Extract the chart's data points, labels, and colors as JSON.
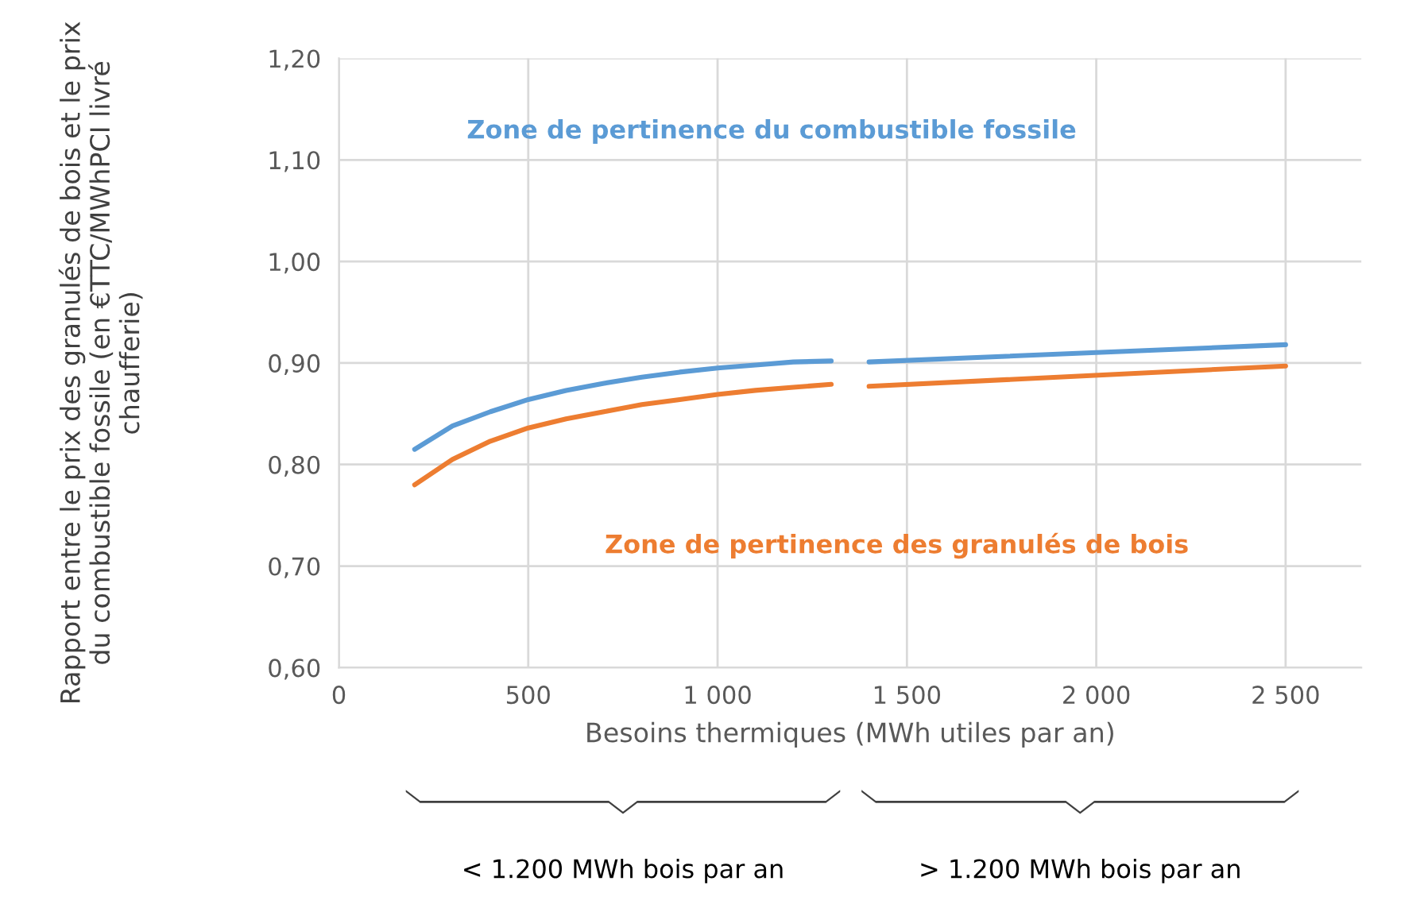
{
  "chart_data": {
    "type": "line",
    "xlabel": "Besoins thermiques (MWh utiles par an)",
    "ylabel": "Rapport entre le prix des granulés de bois et le prix du combustible fossile (en €TTC/MWhPCI livré chaufferie)",
    "x": [
      200,
      300,
      400,
      500,
      600,
      700,
      800,
      900,
      1000,
      1100,
      1200,
      1300,
      1350,
      1400,
      2500
    ],
    "series": [
      {
        "color": "#5b9bd5",
        "values": [
          0.815,
          0.838,
          0.852,
          0.864,
          0.873,
          0.88,
          0.886,
          0.891,
          0.895,
          0.898,
          0.901,
          0.902,
          null,
          0.901,
          0.918
        ]
      },
      {
        "color": "#ed7d31",
        "values": [
          0.78,
          0.805,
          0.823,
          0.836,
          0.845,
          0.852,
          0.859,
          0.864,
          0.869,
          0.873,
          0.876,
          0.879,
          null,
          0.877,
          0.897
        ]
      }
    ],
    "annotations": [
      "Zone de pertinence du combustible fossile",
      "Zone de pertinence des granulés de bois",
      "< 1.200 MWh bois par an",
      "> 1.200 MWh bois par an"
    ],
    "xlim": [
      0,
      2700
    ],
    "xticks": [
      0,
      500,
      {
        "value": 1000,
        "label": "1 000"
      },
      {
        "value": 1500,
        "label": "1 500"
      },
      {
        "value": 2000,
        "label": "2 000"
      },
      {
        "value": 2500,
        "label": "2 500"
      }
    ],
    "ylim": [
      0.6,
      1.2
    ],
    "yticks": [
      {
        "value": 0.6,
        "label": "0,60"
      },
      {
        "value": 0.7,
        "label": "0,70"
      },
      {
        "value": 0.8,
        "label": "0,80"
      },
      {
        "value": 0.9,
        "label": "0,90"
      },
      {
        "value": 1.0,
        "label": "1,00"
      },
      {
        "value": 1.1,
        "label": "1,10"
      },
      {
        "value": 1.2,
        "label": "1,20"
      }
    ],
    "grid": true,
    "marker": "none",
    "line_style": "solid"
  }
}
